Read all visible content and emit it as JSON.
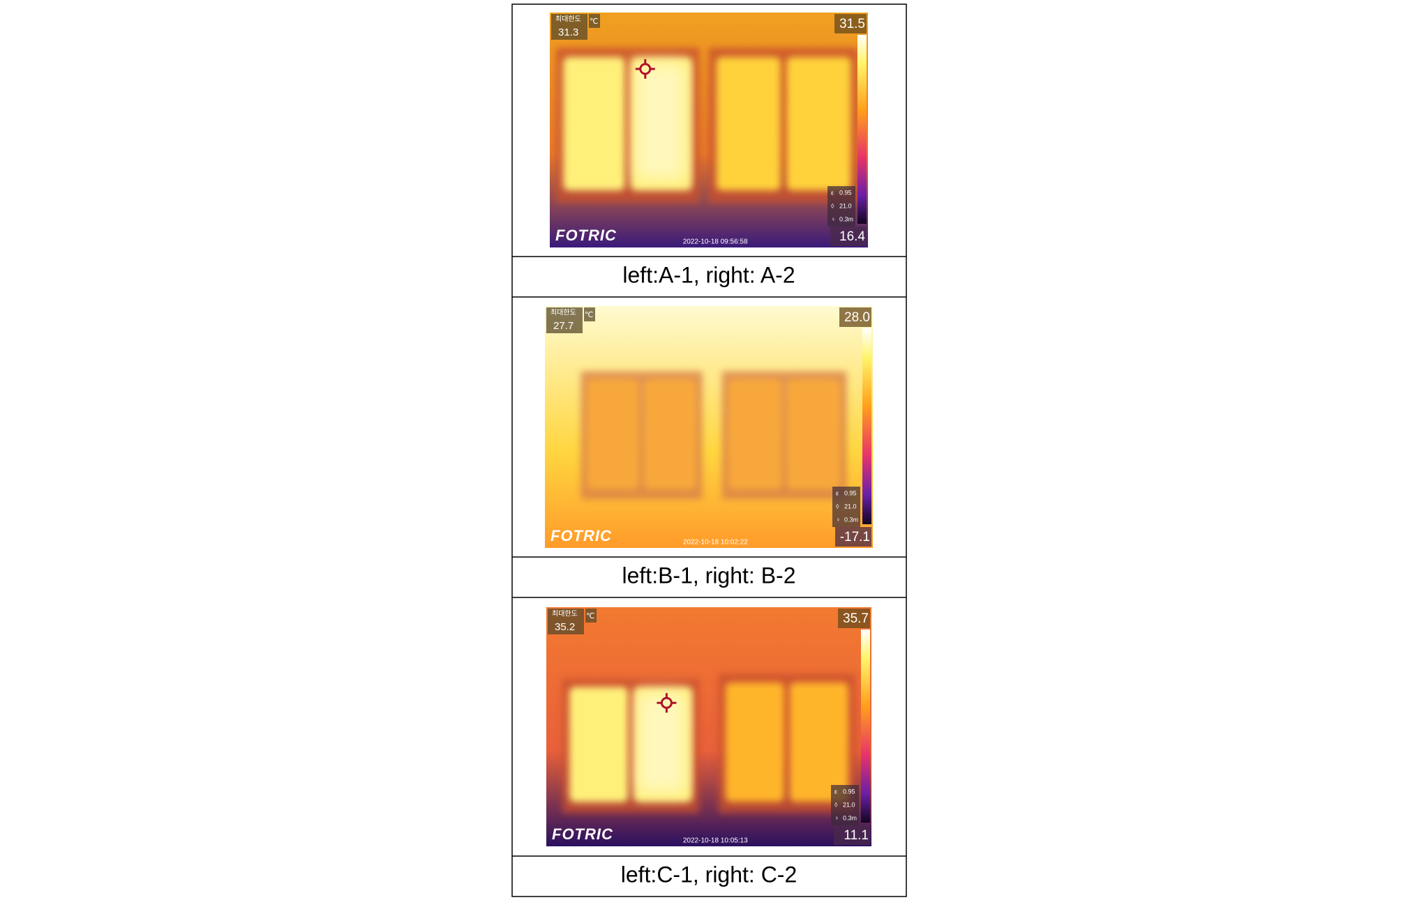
{
  "panels": [
    {
      "max_label": "최대한도",
      "max_value": "31.3",
      "unit": "℃",
      "scale_max": "31.5",
      "scale_min": "16.4",
      "emissivity": "0.95",
      "ambient": "21.0",
      "distance": "0.3m",
      "brand": "FOTRIC",
      "timestamp": "2022-10-18 09:56:58",
      "caption": "left:A-1, right: A-2"
    },
    {
      "max_label": "최대한도",
      "max_value": "27.7",
      "unit": "℃",
      "scale_max": "28.0",
      "scale_min": "-17.1",
      "emissivity": "0.95",
      "ambient": "21.0",
      "distance": "0.3m",
      "brand": "FOTRIC",
      "timestamp": "2022-10-18 10:02:22",
      "caption": "left:B-1, right: B-2"
    },
    {
      "max_label": "최대한도",
      "max_value": "35.2",
      "unit": "℃",
      "scale_max": "35.7",
      "scale_min": "11.1",
      "emissivity": "0.95",
      "ambient": "21.0",
      "distance": "0.3m",
      "brand": "FOTRIC",
      "timestamp": "2022-10-18 10:05:13",
      "caption": "left:C-1, right: C-2"
    }
  ]
}
